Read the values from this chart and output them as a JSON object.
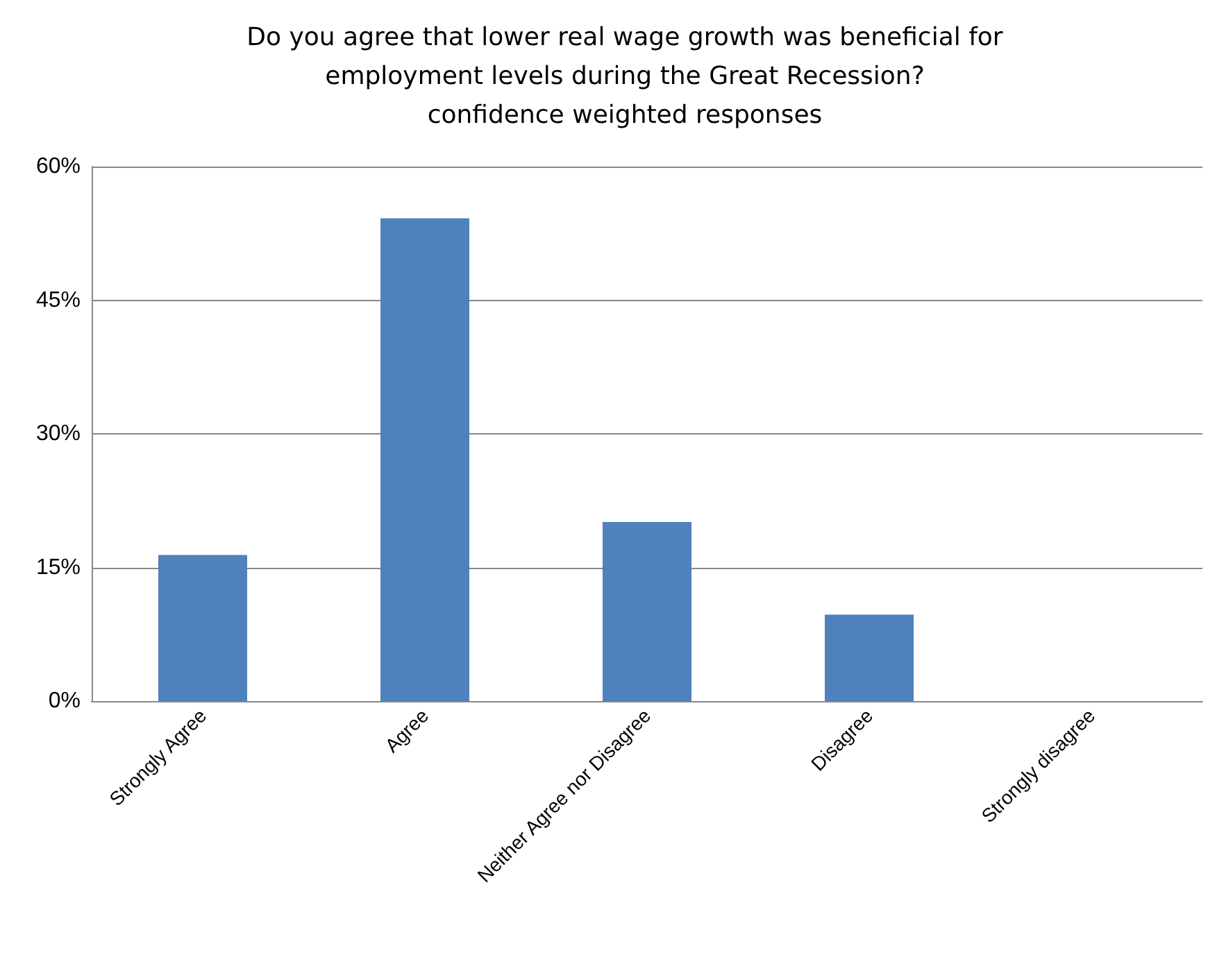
{
  "chart_data": {
    "type": "bar",
    "title": "Do you agree that lower real wage growth was beneficial for\nemployment levels during the Great Recession?\nconfidence weighted responses",
    "categories": [
      "Strongly Agree",
      "Agree",
      "Neither Agree nor Disagree",
      "Disagree",
      "Strongly disagree"
    ],
    "values": [
      16.4,
      54.2,
      20.1,
      9.7,
      0
    ],
    "color": "#4f81bd",
    "ylim": [
      0,
      60
    ],
    "yticks": [
      {
        "value": 0,
        "label": "0%"
      },
      {
        "value": 15,
        "label": "15%"
      },
      {
        "value": 30,
        "label": "30%"
      },
      {
        "value": 45,
        "label": "45%"
      },
      {
        "value": 60,
        "label": "60%"
      }
    ],
    "grid": "y"
  }
}
